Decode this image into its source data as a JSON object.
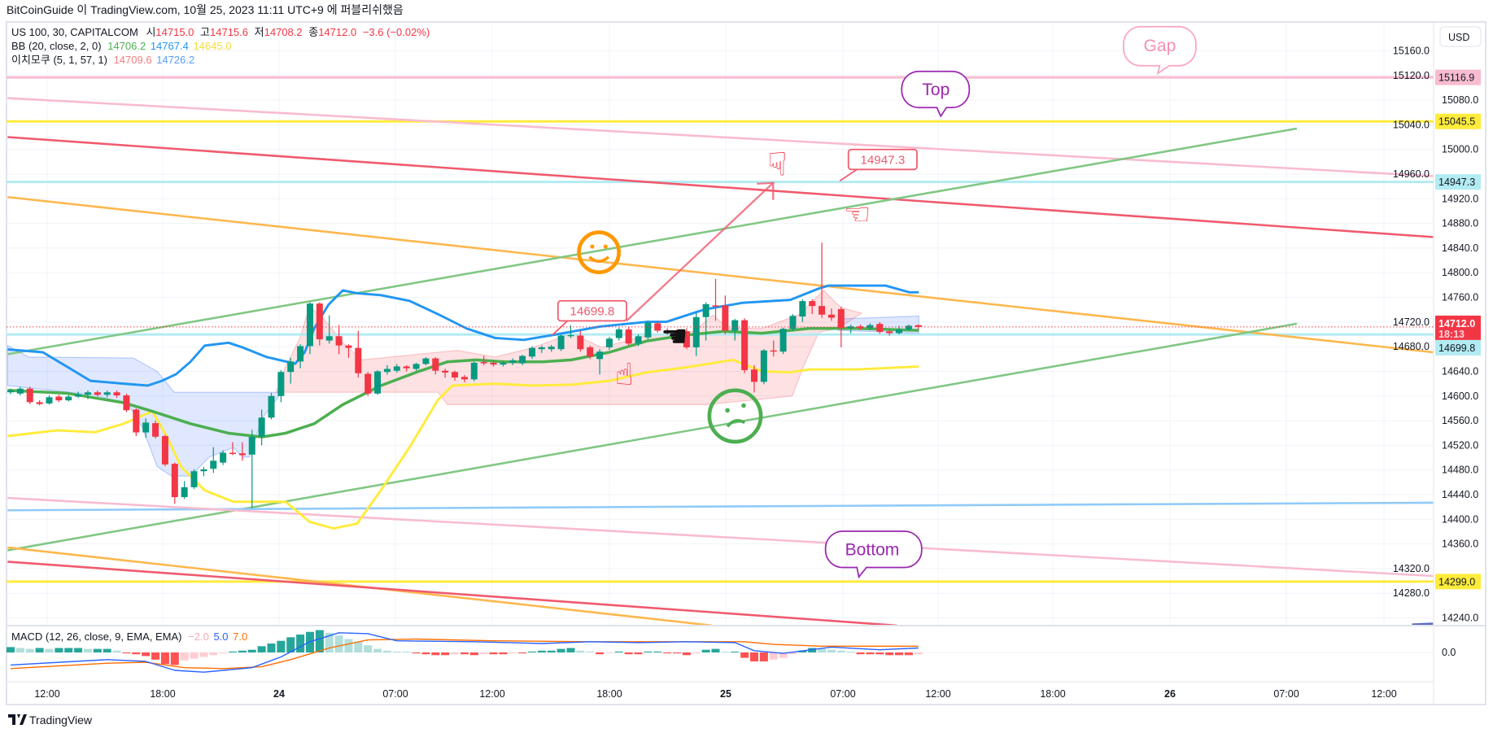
{
  "header": {
    "title": "BitCoinGuide 이 TradingView.com, 10월 25, 2023 11:11 UTC+9 에 퍼블리쉬했음"
  },
  "legend": {
    "symbol": "US 100, 30, CAPITALCOM",
    "open_label": "시",
    "open": "14715.0",
    "high_label": "고",
    "high": "14715.6",
    "low_label": "저",
    "low": "14708.2",
    "close_label": "종",
    "close": "14712.0",
    "change": "−3.6 (−0.02%)",
    "bb_name": "BB (20, close, 2, 0)",
    "bb_basis": "14706.2",
    "bb_upper": "14767.4",
    "bb_lower": "14645.0",
    "ichimoku_name": "이치모쿠 (5, 1, 57, 1)",
    "ichimoku_a": "14709.6",
    "ichimoku_b": "14726.2",
    "macd_name": "MACD (12, 26, close, 9, EMA, EMA)",
    "macd_hist": "−2.0",
    "macd_line": "5.0",
    "macd_signal": "7.0"
  },
  "currency_button": "USD",
  "colors": {
    "up": "#089981",
    "down": "#f23645",
    "bb_basis": "#4caf50",
    "bb_upper": "#2196f3",
    "bb_lower": "#ffeb3b",
    "macd": "#2962ff",
    "signal": "#ff6d00"
  },
  "price_axis": {
    "ticks": [
      "15160.0",
      "15120.0",
      "15080.0",
      "15040.0",
      "15000.0",
      "14960.0",
      "14920.0",
      "14880.0",
      "14840.0",
      "14800.0",
      "14760.0",
      "14720.0",
      "14680.0",
      "14640.0",
      "14600.0",
      "14560.0",
      "14520.0",
      "14480.0",
      "14440.0",
      "14400.0",
      "14360.0",
      "14320.0",
      "14280.0",
      "14240.0"
    ],
    "badges": [
      {
        "value": "15116.9",
        "bg": "#f8bbd0",
        "fg": "#131722"
      },
      {
        "value": "15045.5",
        "bg": "#ffeb3b",
        "fg": "#131722"
      },
      {
        "value": "14947.3",
        "bg": "#b2ebf2",
        "fg": "#131722"
      },
      {
        "value": "14712.0",
        "sub": "18:13",
        "bg": "#f23645",
        "fg": "#ffffff"
      },
      {
        "value": "14699.8",
        "bg": "#b2ebf2",
        "fg": "#131722"
      },
      {
        "value": "14299.0",
        "bg": "#ffeb3b",
        "fg": "#131722"
      }
    ],
    "macd_zero": "0.0"
  },
  "time_axis": [
    "12:00",
    "18:00",
    "24",
    "07:00",
    "12:00",
    "18:00",
    "25",
    "07:00",
    "12:00",
    "18:00",
    "26",
    "07:00",
    "12:00"
  ],
  "time_axis_bold": [
    2,
    6,
    10
  ],
  "annotations": {
    "gap": "Gap",
    "top": "Top",
    "bottom": "Bottom",
    "callout_high": "14947.3",
    "callout_low": "14699.8"
  },
  "footer": {
    "brand": "TradingView"
  },
  "chart_data": {
    "type": "candlestick",
    "symbol": "US 100",
    "interval": "30",
    "current_price": 14712.0,
    "horizontal_levels": [
      15116.9,
      15045.5,
      14947.3,
      14699.8,
      14299.0
    ],
    "candles_ohlc": [
      [
        14606,
        14612,
        14603,
        14609
      ],
      [
        14604,
        14615,
        14601,
        14612
      ],
      [
        14612,
        14615,
        14587,
        14590
      ],
      [
        14590,
        14593,
        14585,
        14587
      ],
      [
        14588,
        14601,
        14586,
        14598
      ],
      [
        14599,
        14602,
        14590,
        14593
      ],
      [
        14593,
        14602,
        14591,
        14599
      ],
      [
        14599,
        14607,
        14597,
        14603
      ],
      [
        14602,
        14609,
        14595,
        14606
      ],
      [
        14606,
        14609,
        14599,
        14602
      ],
      [
        14602,
        14609,
        14598,
        14606
      ],
      [
        14606,
        14609,
        14597,
        14601
      ],
      [
        14601,
        14604,
        14574,
        14577
      ],
      [
        14578,
        14580,
        14535,
        14541
      ],
      [
        14541,
        14564,
        14532,
        14557
      ],
      [
        14556,
        14560,
        14531,
        14534
      ],
      [
        14535,
        14537,
        14486,
        14489
      ],
      [
        14490,
        14492,
        14425,
        14436
      ],
      [
        14436,
        14462,
        14433,
        14452
      ],
      [
        14452,
        14481,
        14449,
        14478
      ],
      [
        14478,
        14485,
        14470,
        14481
      ],
      [
        14482,
        14517,
        14475,
        14495
      ],
      [
        14492,
        14512,
        14488,
        14508
      ],
      [
        14508,
        14525,
        14504,
        14506
      ],
      [
        14507,
        14525,
        14495,
        14504
      ],
      [
        14505,
        14545,
        14418,
        14534
      ],
      [
        14534,
        14578,
        14520,
        14565
      ],
      [
        14565,
        14605,
        14562,
        14600
      ],
      [
        14600,
        14642,
        14590,
        14639
      ],
      [
        14639,
        14662,
        14620,
        14656
      ],
      [
        14656,
        14684,
        14645,
        14681
      ],
      [
        14681,
        14752,
        14668,
        14750
      ],
      [
        14750,
        14752,
        14682,
        14692
      ],
      [
        14690,
        14731,
        14685,
        14697
      ],
      [
        14697,
        14715,
        14668,
        14682
      ],
      [
        14682,
        14684,
        14662,
        14678
      ],
      [
        14678,
        14706,
        14630,
        14637
      ],
      [
        14636,
        14639,
        14600,
        14604
      ],
      [
        14604,
        14642,
        14602,
        14640
      ],
      [
        14639,
        14650,
        14635,
        14644
      ],
      [
        14641,
        14652,
        14638,
        14648
      ],
      [
        14648,
        14650,
        14640,
        14645
      ],
      [
        14644,
        14654,
        14641,
        14652
      ],
      [
        14652,
        14663,
        14650,
        14661
      ],
      [
        14661,
        14663,
        14635,
        14641
      ],
      [
        14641,
        14644,
        14630,
        14638
      ],
      [
        14639,
        14641,
        14625,
        14630
      ],
      [
        14631,
        14634,
        14622,
        14627
      ],
      [
        14627,
        14656,
        14624,
        14654
      ],
      [
        14655,
        14665,
        14650,
        14653
      ],
      [
        14654,
        14657,
        14648,
        14651
      ],
      [
        14651,
        14657,
        14648,
        14654
      ],
      [
        14654,
        14661,
        14650,
        14658
      ],
      [
        14653,
        14667,
        14650,
        14665
      ],
      [
        14664,
        14681,
        14660,
        14678
      ],
      [
        14676,
        14682,
        14670,
        14679
      ],
      [
        14676,
        14683,
        14672,
        14680
      ],
      [
        14676,
        14700,
        14673,
        14698
      ],
      [
        14697,
        14715,
        14694,
        14699
      ],
      [
        14698,
        14706,
        14672,
        14676
      ],
      [
        14679,
        14682,
        14660,
        14664
      ],
      [
        14660,
        14676,
        14635,
        14672
      ],
      [
        14679,
        14696,
        14675,
        14693
      ],
      [
        14694,
        14711,
        14690,
        14708
      ],
      [
        14708,
        14712,
        14682,
        14685
      ],
      [
        14685,
        14700,
        14681,
        14697
      ],
      [
        14695,
        14722,
        14692,
        14719
      ],
      [
        14718,
        14722,
        14703,
        14706
      ],
      [
        14706,
        14710,
        14699,
        14702
      ],
      [
        14703,
        14708,
        14695,
        14700
      ],
      [
        14705,
        14710,
        14676,
        14679
      ],
      [
        14679,
        14735,
        14665,
        14728
      ],
      [
        14728,
        14752,
        14690,
        14749
      ],
      [
        14747,
        14790,
        14722,
        14745
      ],
      [
        14747,
        14763,
        14700,
        14706
      ],
      [
        14706,
        14725,
        14690,
        14723
      ],
      [
        14723,
        14726,
        14637,
        14642
      ],
      [
        14643,
        14650,
        14606,
        14623
      ],
      [
        14623,
        14676,
        14619,
        14674
      ],
      [
        14674,
        14690,
        14664,
        14672
      ],
      [
        14672,
        14711,
        14668,
        14709
      ],
      [
        14709,
        14733,
        14705,
        14730
      ],
      [
        14729,
        14757,
        14720,
        14754
      ],
      [
        14754,
        14757,
        14733,
        14746
      ],
      [
        14746,
        14849,
        14727,
        14732
      ],
      [
        14732,
        14742,
        14722,
        14727
      ],
      [
        14741,
        14745,
        14679,
        14710
      ],
      [
        14710,
        14716,
        14702,
        14713
      ],
      [
        14713,
        14716,
        14707,
        14710
      ],
      [
        14710,
        14718,
        14707,
        14715
      ],
      [
        14717,
        14720,
        14701,
        14704
      ],
      [
        14705,
        14708,
        14698,
        14702
      ],
      [
        14702,
        14714,
        14700,
        14708
      ],
      [
        14708,
        14716,
        14706,
        14714
      ],
      [
        14715,
        14715.6,
        14708.2,
        14712
      ]
    ],
    "macd_histogram": [
      6,
      5,
      4,
      5,
      4,
      5,
      5,
      5,
      4,
      4,
      4,
      2,
      -1,
      -2,
      -4,
      -8,
      -13,
      -14,
      -9,
      -7,
      -5,
      -3,
      -1,
      1,
      2,
      3,
      7,
      10,
      13,
      17,
      20,
      23,
      25,
      22,
      19,
      15,
      12,
      8,
      4,
      2,
      1,
      0.5,
      -1,
      -2,
      -3,
      -3,
      -2,
      -2,
      -3,
      -2,
      -2,
      -2,
      -1,
      -1,
      1,
      2,
      2,
      4,
      5,
      2,
      1,
      -2,
      -0.5,
      1,
      -2,
      -2,
      1,
      1,
      -1,
      -1,
      -3,
      -1,
      3,
      4,
      0.5,
      0.5,
      -6,
      -10,
      -10,
      -8,
      -6,
      -2,
      2,
      5,
      4,
      3,
      2,
      1,
      -2,
      -2,
      -2,
      -3,
      -3,
      -3,
      -2
    ],
    "macd_line": [
      [
        0,
        -14
      ],
      [
        10,
        -8
      ],
      [
        14,
        -10
      ],
      [
        17,
        -20
      ],
      [
        20,
        -22
      ],
      [
        25,
        -17
      ],
      [
        28,
        -5
      ],
      [
        31,
        12
      ],
      [
        34,
        22
      ],
      [
        37,
        21
      ],
      [
        40,
        13
      ],
      [
        48,
        12
      ],
      [
        55,
        10
      ],
      [
        60,
        12
      ],
      [
        65,
        11
      ],
      [
        70,
        12
      ],
      [
        75,
        11
      ],
      [
        77,
        2
      ],
      [
        80,
        -1
      ],
      [
        85,
        6
      ],
      [
        90,
        3
      ],
      [
        94,
        5
      ]
    ],
    "signal_line": [
      [
        0,
        -18
      ],
      [
        10,
        -12
      ],
      [
        14,
        -11
      ],
      [
        18,
        -17
      ],
      [
        22,
        -18
      ],
      [
        26,
        -16
      ],
      [
        29,
        -8
      ],
      [
        33,
        5
      ],
      [
        37,
        14
      ],
      [
        42,
        15
      ],
      [
        50,
        13
      ],
      [
        60,
        12
      ],
      [
        70,
        12
      ],
      [
        76,
        12
      ],
      [
        79,
        9
      ],
      [
        84,
        7
      ],
      [
        90,
        7
      ],
      [
        94,
        7
      ]
    ]
  }
}
